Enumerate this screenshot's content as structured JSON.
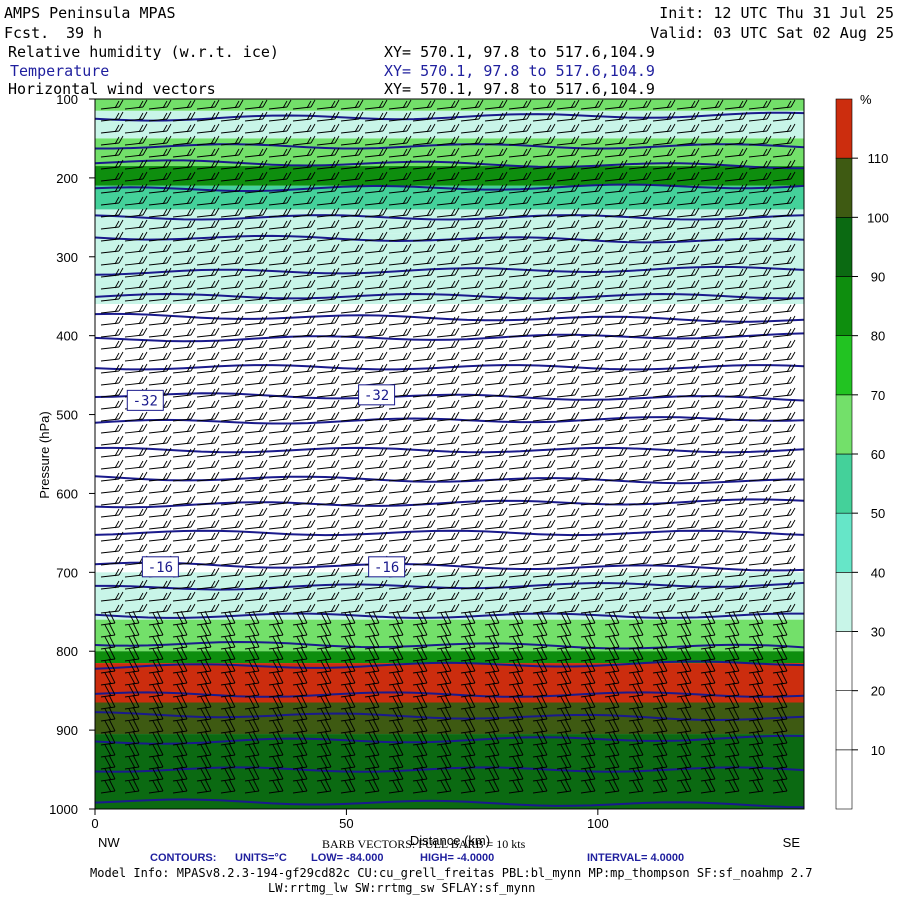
{
  "header": {
    "model": "AMPS Peninsula MPAS",
    "fcst_label": "Fcst.",
    "fcst_value": "39 h",
    "init": "Init: 12 UTC Thu 31 Jul 25",
    "valid": "Valid: 03 UTC Sat 02 Aug 25",
    "fields": [
      {
        "name": "Relative humidity (w.r.t. ice)",
        "xy": "XY= 570.1, 97.8 to 517.6,104.9"
      },
      {
        "name": "Temperature",
        "xy": "XY= 570.1, 97.8 to 517.6,104.9"
      },
      {
        "name": "Horizontal wind vectors",
        "xy": "XY= 570.1, 97.8 to 517.6,104.9"
      }
    ]
  },
  "chart_data": {
    "type": "heatmap",
    "title": "Relative humidity (w.r.t. ice)",
    "xlabel": "Distance (km)",
    "ylabel": "Pressure (hPa)",
    "x_range": [
      0,
      141
    ],
    "x_ticks": [
      0,
      50,
      100
    ],
    "x_end_labels": {
      "left": "NW",
      "right": "SE"
    },
    "y_range": [
      1000,
      100
    ],
    "y_ticks": [
      100,
      200,
      300,
      400,
      500,
      600,
      700,
      800,
      900,
      1000
    ],
    "colorbar": {
      "unit": "%",
      "levels": [
        10,
        20,
        30,
        40,
        50,
        60,
        70,
        80,
        90,
        100,
        110
      ],
      "colors": [
        "#ffffff",
        "#ffffff",
        "#ffffff",
        "#c8f5e8",
        "#66e6c8",
        "#44d19a",
        "#73e06a",
        "#22c322",
        "#0e8e0e",
        "#0b6a12",
        "#3e5a12",
        "#cc2d0e"
      ]
    },
    "rh_bands": [
      {
        "p_top": 100,
        "p_bot": 115,
        "rh": 65
      },
      {
        "p_top": 115,
        "p_bot": 150,
        "rh": 38
      },
      {
        "p_top": 150,
        "p_bot": 185,
        "rh": 66
      },
      {
        "p_top": 185,
        "p_bot": 210,
        "rh": 85
      },
      {
        "p_top": 210,
        "p_bot": 240,
        "rh": 58
      },
      {
        "p_top": 240,
        "p_bot": 270,
        "rh": 34
      },
      {
        "p_top": 270,
        "p_bot": 330,
        "rh": 32
      },
      {
        "p_top": 330,
        "p_bot": 360,
        "rh": 36
      },
      {
        "p_top": 360,
        "p_bot": 560,
        "rh": 15
      },
      {
        "p_top": 560,
        "p_bot": 700,
        "rh": 22
      },
      {
        "p_top": 700,
        "p_bot": 760,
        "rh": 36
      },
      {
        "p_top": 760,
        "p_bot": 800,
        "rh": 62
      },
      {
        "p_top": 800,
        "p_bot": 815,
        "rh": 88
      },
      {
        "p_top": 815,
        "p_bot": 865,
        "rh": 112
      },
      {
        "p_top": 865,
        "p_bot": 905,
        "rh": 102
      },
      {
        "p_top": 905,
        "p_bot": 1000,
        "rh": 95
      }
    ],
    "temperature_contours": {
      "units": "°C",
      "low": -84.0,
      "high": -4.0,
      "interval": 4.0,
      "isobar_levels": [
        125,
        160,
        180,
        215,
        250,
        275,
        320,
        350,
        375,
        405,
        440,
        475,
        510,
        545,
        580,
        615,
        650,
        690,
        720,
        755,
        790,
        820,
        855,
        880,
        915,
        950,
        990
      ],
      "labels": [
        {
          "text": "-32",
          "x_km": 10,
          "p": 482
        },
        {
          "text": "-32",
          "x_km": 56,
          "p": 475
        },
        {
          "text": "-16",
          "x_km": 13,
          "p": 693
        },
        {
          "text": "-16",
          "x_km": 58,
          "p": 693
        }
      ]
    },
    "footer": {
      "barb": "BARB VECTORS: FULL BARB = 10 kts",
      "contours_label": "CONTOURS:",
      "units": "UNITS=°C",
      "low": "LOW= -84.000",
      "high": "HIGH= -4.0000",
      "interval": "INTERVAL= 4.0000",
      "model_info_1": "Model Info: MPASv8.2.3-194-gf29cd82c CU:cu_grell_freitas PBL:bl_mynn MP:mp_thompson SF:sf_noahmp 2.7",
      "model_info_2": "LW:rrtmg_lw SW:rrtmg_sw SFLAY:sf_mynn"
    },
    "colors": {
      "contour": "#1a1a8c",
      "barb": "#000000",
      "header_blue": "#1f1f9e"
    }
  }
}
